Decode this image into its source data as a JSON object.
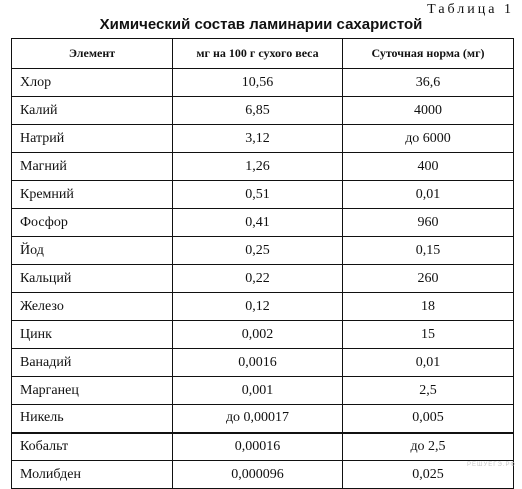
{
  "table_label": "Таблица 1",
  "title": "Химический состав ламинарии сахаристой",
  "headers": {
    "element": "Элемент",
    "content": "мг на 100 г сухого веса",
    "norm": "Суточная норма (мг)"
  },
  "rows": [
    {
      "element": "Хлор",
      "content": "10,56",
      "norm": "36,6"
    },
    {
      "element": "Калий",
      "content": "6,85",
      "norm": "4000"
    },
    {
      "element": "Натрий",
      "content": "3,12",
      "norm": "до 6000"
    },
    {
      "element": "Магний",
      "content": "1,26",
      "norm": "400"
    },
    {
      "element": "Кремний",
      "content": "0,51",
      "norm": "0,01"
    },
    {
      "element": "Фосфор",
      "content": "0,41",
      "norm": "960"
    },
    {
      "element": "Йод",
      "content": "0,25",
      "norm": "0,15"
    },
    {
      "element": "Кальций",
      "content": "0,22",
      "norm": "260"
    },
    {
      "element": "Железо",
      "content": "0,12",
      "norm": "18"
    },
    {
      "element": "Цинк",
      "content": "0,002",
      "norm": "15"
    },
    {
      "element": "Ванадий",
      "content": "0,0016",
      "norm": "0,01"
    },
    {
      "element": "Марганец",
      "content": "0,001",
      "norm": "2,5"
    },
    {
      "element": "Никель",
      "content": "до 0,00017",
      "norm": "0,005"
    },
    {
      "element": "Кобальт",
      "content": "0,00016",
      "norm": "до 2,5"
    },
    {
      "element": "Молибден",
      "content": "0,000096",
      "norm": "0,025"
    }
  ],
  "watermark": "РЕШУЕГЭ.РФ"
}
